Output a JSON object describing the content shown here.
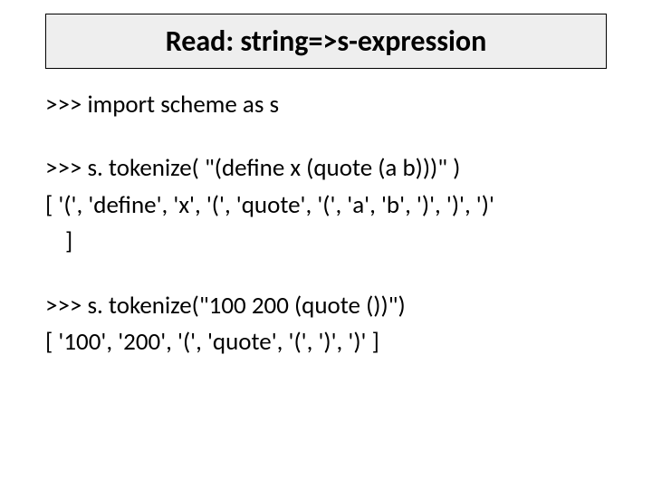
{
  "title": "Read: string=>s-expression",
  "lines": {
    "l1": ">>> import scheme as s",
    "l2": ">>> s. tokenize( \"(define x (quote (a b)))\" )",
    "l3": "[ '(', 'define', 'x', '(', 'quote', '(', 'a', 'b', ')', ')', ')'",
    "l3b": "]",
    "l4": ">>> s. tokenize(\"100 200 (quote ())\")",
    "l5": "[ '100', '200', '(', 'quote', '(', ')', ')' ]"
  },
  "colors": {
    "title_bg": "#eeeeee",
    "title_border": "#000000",
    "text": "#000000",
    "background": "#ffffff"
  },
  "typography": {
    "title_fontsize": 32,
    "body_fontsize": 27,
    "font_family": "Calibri"
  }
}
